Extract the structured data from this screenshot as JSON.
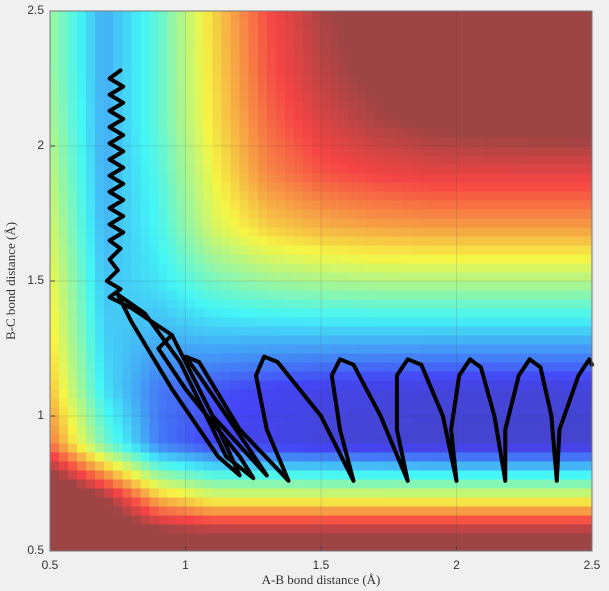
{
  "chart_data": {
    "type": "contour",
    "x_label": "A-B bond distance (Å)",
    "y_label": "B-C bond distance (Å)",
    "xlim": [
      0.5,
      2.5
    ],
    "ylim": [
      0.5,
      2.5
    ],
    "xticks": [
      0.5,
      1,
      1.5,
      2,
      2.5
    ],
    "yticks": [
      0.5,
      1,
      1.5,
      2,
      2.5
    ],
    "grid": true,
    "x": [
      0.5,
      0.7,
      0.9,
      1.1,
      1.3,
      1.5,
      1.7,
      1.9,
      2.1,
      2.3,
      2.5
    ],
    "y": [
      0.5,
      0.7,
      0.9,
      1.1,
      1.3,
      1.5,
      1.7,
      1.9,
      2.1,
      2.3,
      2.5
    ],
    "zlim": [
      0,
      1
    ],
    "z": [
      [
        1.2,
        1.2,
        1.2,
        1.2,
        1.2,
        1.2,
        1.2,
        1.2,
        1.2,
        1.2,
        1.2
      ],
      [
        1.2,
        1.0,
        0.7,
        0.6,
        0.6,
        0.6,
        0.6,
        0.6,
        0.6,
        0.6,
        0.6
      ],
      [
        0.8,
        0.45,
        0.2,
        0.12,
        0.1,
        0.08,
        0.07,
        0.06,
        0.06,
        0.06,
        0.06
      ],
      [
        0.7,
        0.35,
        0.2,
        0.15,
        0.12,
        0.1,
        0.09,
        0.08,
        0.08,
        0.08,
        0.08
      ],
      [
        0.65,
        0.32,
        0.28,
        0.3,
        0.3,
        0.3,
        0.3,
        0.3,
        0.3,
        0.3,
        0.3
      ],
      [
        0.62,
        0.3,
        0.35,
        0.45,
        0.5,
        0.52,
        0.53,
        0.53,
        0.53,
        0.53,
        0.53
      ],
      [
        0.58,
        0.28,
        0.38,
        0.58,
        0.68,
        0.72,
        0.74,
        0.75,
        0.75,
        0.75,
        0.75
      ],
      [
        0.55,
        0.27,
        0.4,
        0.62,
        0.78,
        0.85,
        0.88,
        0.9,
        0.9,
        0.9,
        0.9
      ],
      [
        0.52,
        0.27,
        0.42,
        0.65,
        0.82,
        0.92,
        0.98,
        1.02,
        1.04,
        1.05,
        1.05
      ],
      [
        0.5,
        0.27,
        0.42,
        0.66,
        0.85,
        0.96,
        1.03,
        1.07,
        1.1,
        1.12,
        1.12
      ],
      [
        0.5,
        0.27,
        0.42,
        0.67,
        0.86,
        0.98,
        1.05,
        1.1,
        1.12,
        1.15,
        1.15
      ]
    ],
    "trajectory": {
      "color": "#000000",
      "x": [
        0.76,
        0.72,
        0.77,
        0.72,
        0.77,
        0.72,
        0.77,
        0.72,
        0.77,
        0.72,
        0.77,
        0.72,
        0.77,
        0.72,
        0.77,
        0.72,
        0.77,
        0.72,
        0.77,
        0.72,
        0.77,
        0.72,
        0.76,
        0.72,
        0.75,
        0.71,
        0.76,
        0.72,
        0.8,
        0.95,
        1.1,
        1.2,
        1.12,
        0.95,
        0.8,
        0.75,
        0.85,
        0.98,
        1.15,
        1.25,
        1.2,
        1.0,
        0.9,
        0.95,
        1.1,
        1.3,
        1.22,
        1.05,
        1.0,
        1.05,
        1.2,
        1.38,
        1.3,
        1.26,
        1.29,
        1.34,
        1.5,
        1.62,
        1.57,
        1.54,
        1.57,
        1.62,
        1.72,
        1.82,
        1.78,
        1.78,
        1.82,
        1.87,
        1.95,
        2.0,
        1.98,
        2.01,
        2.05,
        2.09,
        2.14,
        2.18,
        2.18,
        2.23,
        2.27,
        2.31,
        2.35,
        2.37,
        2.38,
        2.45,
        2.49,
        2.5
      ],
      "y": [
        2.28,
        2.25,
        2.22,
        2.19,
        2.16,
        2.13,
        2.1,
        2.07,
        2.04,
        2.01,
        1.98,
        1.95,
        1.92,
        1.89,
        1.86,
        1.83,
        1.8,
        1.77,
        1.74,
        1.71,
        1.68,
        1.65,
        1.62,
        1.58,
        1.54,
        1.5,
        1.47,
        1.44,
        1.4,
        1.3,
        1.0,
        0.78,
        0.85,
        1.1,
        1.35,
        1.45,
        1.38,
        1.2,
        0.85,
        0.77,
        0.85,
        1.1,
        1.25,
        1.3,
        1.0,
        0.78,
        0.9,
        1.15,
        1.22,
        1.2,
        0.95,
        0.76,
        0.95,
        1.15,
        1.22,
        1.2,
        1.0,
        0.76,
        0.95,
        1.15,
        1.21,
        1.19,
        1.0,
        0.76,
        0.95,
        1.15,
        1.21,
        1.19,
        1.0,
        0.76,
        0.95,
        1.15,
        1.21,
        1.18,
        1.0,
        0.76,
        0.95,
        1.15,
        1.21,
        1.18,
        1.0,
        0.76,
        0.95,
        1.15,
        1.21,
        1.19
      ]
    }
  }
}
